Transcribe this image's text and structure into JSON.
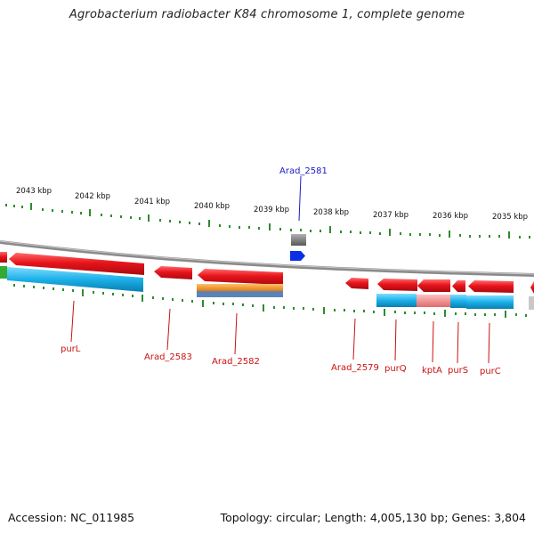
{
  "title": "Agrobacterium radiobacter K84 chromosome 1, complete genome",
  "accession": "Accession: NC_011985",
  "summary": "Topology: circular; Length: 4,005,130 bp; Genes: 3,804",
  "colors": {
    "backbone": "#8a8a8a",
    "gene_red": "#e8141b",
    "cds_blue": "#1ab0e8",
    "tick_green": "#2e8b2e",
    "label_red": "#cc1111",
    "label_blue": "#1a1acc",
    "orange": "#f59a1e",
    "steel": "#5a84b5",
    "pink": "#f08a8a",
    "gray_feature": "#7a7a7a",
    "blue_feature": "#0a2fe6",
    "green_feature": "#33aa33"
  },
  "scale_labels": [
    "2043 kbp",
    "2042 kbp",
    "2041 kbp",
    "2040 kbp",
    "2039 kbp",
    "2038 kbp",
    "2037 kbp",
    "2036 kbp",
    "2035 kbp"
  ],
  "gene_labels": [
    "purL",
    "Arad_2583",
    "Arad_2582",
    "Arad_2579",
    "purQ",
    "kptA",
    "purS",
    "purC"
  ],
  "highlight_label": "Arad_2581"
}
